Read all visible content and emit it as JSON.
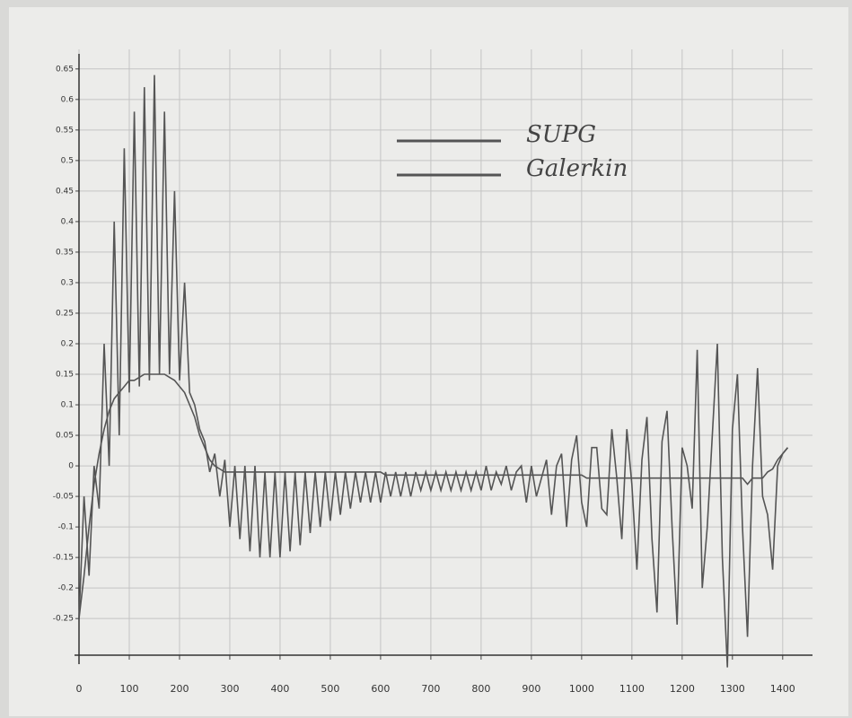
{
  "chart_data": {
    "type": "line",
    "x": [
      0,
      10,
      20,
      30,
      40,
      50,
      60,
      70,
      80,
      90,
      100,
      110,
      120,
      130,
      140,
      150,
      160,
      170,
      180,
      190,
      200,
      210,
      220,
      230,
      240,
      250,
      260,
      270,
      280,
      290,
      300,
      310,
      320,
      330,
      340,
      350,
      360,
      370,
      380,
      390,
      400,
      410,
      420,
      430,
      440,
      450,
      460,
      470,
      480,
      490,
      500,
      510,
      520,
      530,
      540,
      550,
      560,
      570,
      580,
      590,
      600,
      610,
      620,
      630,
      640,
      650,
      660,
      670,
      680,
      690,
      700,
      710,
      720,
      730,
      740,
      750,
      760,
      770,
      780,
      790,
      800,
      810,
      820,
      830,
      840,
      850,
      860,
      870,
      880,
      890,
      900,
      910,
      920,
      930,
      940,
      950,
      960,
      970,
      980,
      990,
      1000,
      1010,
      1020,
      1030,
      1040,
      1050,
      1060,
      1070,
      1080,
      1090,
      1100,
      1110,
      1120,
      1130,
      1140,
      1150,
      1160,
      1170,
      1180,
      1190,
      1200,
      1210,
      1220,
      1230,
      1240,
      1250,
      1260,
      1270,
      1280,
      1290,
      1300,
      1310,
      1320,
      1330,
      1340,
      1350,
      1360,
      1370,
      1380,
      1390,
      1400,
      1410
    ],
    "series": [
      {
        "name": "SUPG",
        "color": "#555555",
        "values": [
          -0.25,
          -0.18,
          -0.1,
          -0.03,
          0.02,
          0.06,
          0.09,
          0.11,
          0.12,
          0.13,
          0.14,
          0.14,
          0.145,
          0.15,
          0.15,
          0.15,
          0.15,
          0.15,
          0.145,
          0.14,
          0.13,
          0.12,
          0.1,
          0.08,
          0.05,
          0.03,
          0.01,
          0,
          -0.005,
          -0.01,
          -0.01,
          -0.01,
          -0.01,
          -0.01,
          -0.01,
          -0.01,
          -0.01,
          -0.01,
          -0.01,
          -0.01,
          -0.01,
          -0.01,
          -0.01,
          -0.01,
          -0.01,
          -0.01,
          -0.01,
          -0.01,
          -0.01,
          -0.01,
          -0.01,
          -0.01,
          -0.01,
          -0.01,
          -0.01,
          -0.01,
          -0.01,
          -0.01,
          -0.01,
          -0.01,
          -0.01,
          -0.015,
          -0.015,
          -0.015,
          -0.015,
          -0.015,
          -0.015,
          -0.015,
          -0.015,
          -0.015,
          -0.015,
          -0.015,
          -0.015,
          -0.015,
          -0.015,
          -0.015,
          -0.015,
          -0.015,
          -0.015,
          -0.015,
          -0.015,
          -0.015,
          -0.015,
          -0.015,
          -0.015,
          -0.015,
          -0.015,
          -0.015,
          -0.015,
          -0.015,
          -0.015,
          -0.015,
          -0.015,
          -0.015,
          -0.015,
          -0.015,
          -0.015,
          -0.015,
          -0.015,
          -0.015,
          -0.015,
          -0.02,
          -0.02,
          -0.02,
          -0.02,
          -0.02,
          -0.02,
          -0.02,
          -0.02,
          -0.02,
          -0.02,
          -0.02,
          -0.02,
          -0.02,
          -0.02,
          -0.02,
          -0.02,
          -0.02,
          -0.02,
          -0.02,
          -0.02,
          -0.02,
          -0.02,
          -0.02,
          -0.02,
          -0.02,
          -0.02,
          -0.02,
          -0.02,
          -0.02,
          -0.02,
          -0.02,
          -0.02,
          -0.03,
          -0.02,
          -0.02,
          -0.02,
          -0.01,
          -0.005,
          0.01,
          0.02,
          0.03
        ]
      },
      {
        "name": "Galerkin",
        "color": "#555555",
        "values": [
          -0.25,
          -0.05,
          -0.18,
          0,
          -0.07,
          0.2,
          0,
          0.4,
          0.05,
          0.52,
          0.12,
          0.58,
          0.13,
          0.62,
          0.14,
          0.64,
          0.15,
          0.58,
          0.15,
          0.45,
          0.14,
          0.3,
          0.12,
          0.1,
          0.06,
          0.04,
          -0.01,
          0.02,
          -0.05,
          0.01,
          -0.1,
          0,
          -0.12,
          0,
          -0.14,
          0,
          -0.15,
          -0.01,
          -0.15,
          -0.01,
          -0.15,
          -0.01,
          -0.14,
          -0.01,
          -0.13,
          -0.01,
          -0.11,
          -0.01,
          -0.1,
          -0.01,
          -0.09,
          -0.01,
          -0.08,
          -0.01,
          -0.07,
          -0.01,
          -0.06,
          -0.01,
          -0.06,
          -0.01,
          -0.06,
          -0.01,
          -0.05,
          -0.01,
          -0.05,
          -0.01,
          -0.05,
          -0.01,
          -0.04,
          -0.01,
          -0.04,
          -0.01,
          -0.04,
          -0.01,
          -0.04,
          -0.01,
          -0.04,
          -0.01,
          -0.04,
          -0.01,
          -0.04,
          0,
          -0.04,
          -0.01,
          -0.03,
          0,
          -0.04,
          -0.01,
          0,
          -0.06,
          0,
          -0.05,
          -0.02,
          0.01,
          -0.08,
          0,
          0.02,
          -0.1,
          0.01,
          0.05,
          -0.06,
          -0.1,
          0.03,
          0.03,
          -0.07,
          -0.08,
          0.06,
          -0.02,
          -0.12,
          0.06,
          -0.03,
          -0.17,
          0.01,
          0.08,
          -0.12,
          -0.24,
          0.04,
          0.09,
          -0.1,
          -0.26,
          0.03,
          0,
          -0.07,
          0.19,
          -0.2,
          -0.1,
          0.05,
          0.2,
          -0.15,
          -0.33,
          0.06,
          0.15,
          -0.1,
          -0.28,
          0,
          0.16,
          -0.05,
          -0.08,
          -0.17,
          0,
          0.02,
          0.03
        ]
      }
    ],
    "xlim": [
      0,
      1420
    ],
    "ylim": [
      -0.31,
      0.66
    ],
    "xticks": [
      0,
      100,
      200,
      300,
      400,
      500,
      600,
      700,
      800,
      900,
      1000,
      1100,
      1200,
      1300,
      1400
    ],
    "yticks": [
      -0.25,
      -0.2,
      -0.15,
      -0.1,
      -0.05,
      0,
      0.05,
      0.1,
      0.15,
      0.2,
      0.25,
      0.3,
      0.35,
      0.4,
      0.45,
      0.5,
      0.55,
      0.6,
      0.65
    ],
    "grid": true
  }
}
